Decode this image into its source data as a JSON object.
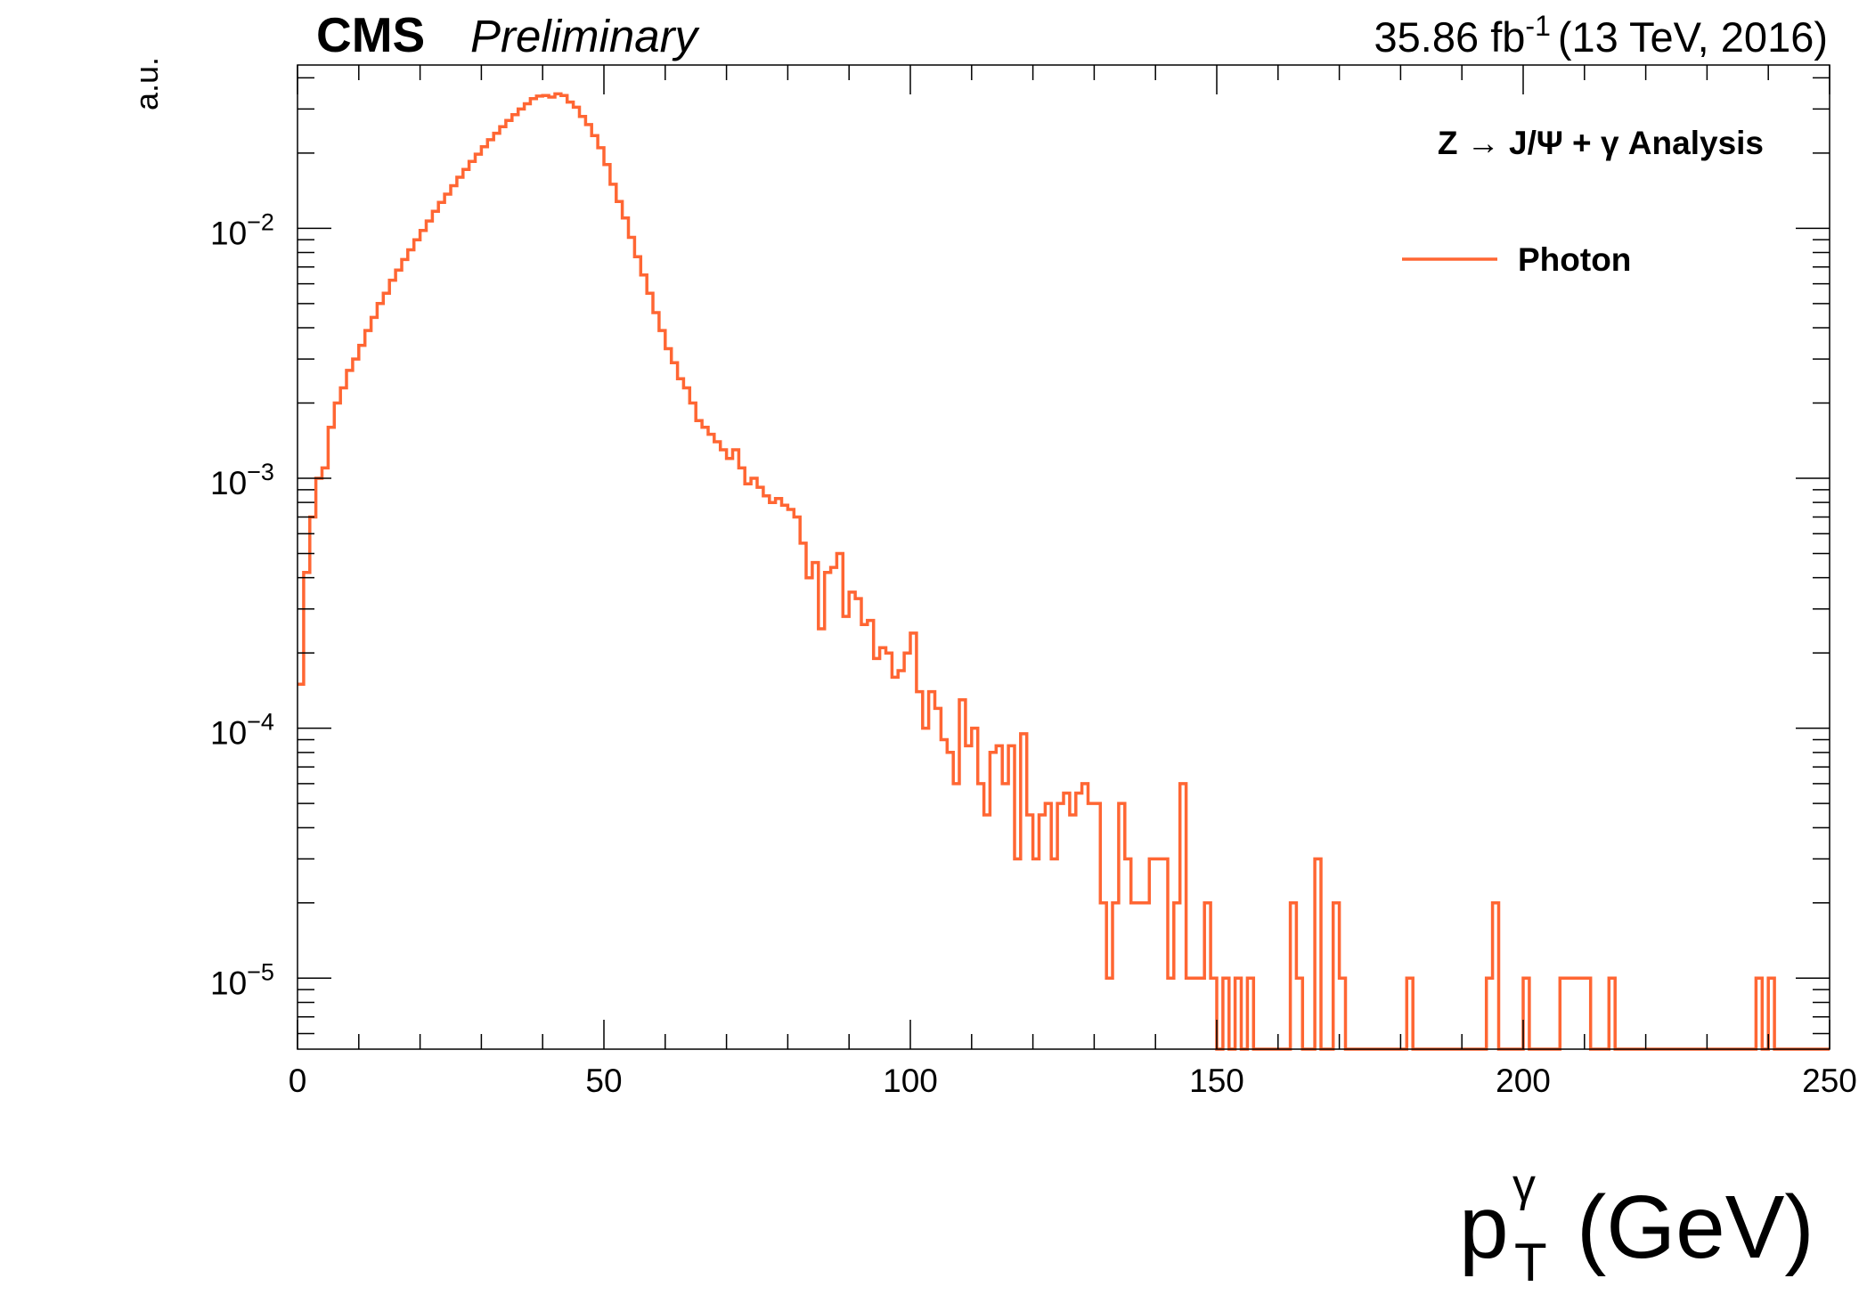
{
  "header": {
    "experiment": "CMS",
    "status": "Preliminary",
    "lumi_value": "35.86 fb",
    "lumi_exp": "-1",
    "lumi_rest": "(13 TeV, 2016)"
  },
  "legend": {
    "analysis_title": "Z → J/Ψ + γ Analysis",
    "entry_label": "Photon"
  },
  "colors": {
    "series": "#ff6633",
    "axis": "#000000"
  },
  "chart_data": {
    "type": "histogram",
    "xlabel_main": "p",
    "xlabel_sup": "γ",
    "xlabel_sub": "T",
    "xlabel_unit": "(GeV)",
    "ylabel": "a.u.",
    "xlim": [
      0,
      250
    ],
    "ylim": [
      5.2e-06,
      0.045
    ],
    "yscale": "log",
    "x_ticks": [
      0,
      50,
      100,
      150,
      200,
      250
    ],
    "y_ticks": [
      {
        "mant": "10",
        "exp": "−5",
        "value": 1e-05
      },
      {
        "mant": "10",
        "exp": "−4",
        "value": 0.0001
      },
      {
        "mant": "10",
        "exp": "−3",
        "value": 0.001
      },
      {
        "mant": "10",
        "exp": "−2",
        "value": 0.01
      }
    ],
    "legend_position": "top-right",
    "grid": false,
    "bin_width": 1,
    "series": [
      {
        "name": "Photon",
        "bin_start": 0,
        "values": [
          0.00015,
          0.00042,
          0.0007,
          0.001,
          0.0011,
          0.0016,
          0.002,
          0.0023,
          0.0027,
          0.003,
          0.0034,
          0.0039,
          0.0044,
          0.005,
          0.0055,
          0.0062,
          0.0068,
          0.0075,
          0.0082,
          0.009,
          0.0098,
          0.0107,
          0.0117,
          0.0127,
          0.0137,
          0.0148,
          0.016,
          0.0172,
          0.0185,
          0.0198,
          0.0212,
          0.0226,
          0.024,
          0.0255,
          0.027,
          0.0285,
          0.03,
          0.0315,
          0.033,
          0.0338,
          0.034,
          0.0335,
          0.0345,
          0.034,
          0.032,
          0.0305,
          0.028,
          0.026,
          0.0235,
          0.021,
          0.018,
          0.015,
          0.0128,
          0.011,
          0.0092,
          0.0077,
          0.0065,
          0.0055,
          0.0046,
          0.0039,
          0.0033,
          0.0029,
          0.0025,
          0.0023,
          0.002,
          0.0017,
          0.0016,
          0.0015,
          0.0014,
          0.0013,
          0.0012,
          0.0013,
          0.0011,
          0.00095,
          0.001,
          0.00092,
          0.00085,
          0.0008,
          0.00083,
          0.00078,
          0.00075,
          0.0007,
          0.00055,
          0.0004,
          0.00046,
          0.00025,
          0.00042,
          0.00044,
          0.0005,
          0.00028,
          0.00035,
          0.00033,
          0.00026,
          0.00027,
          0.00019,
          0.00021,
          0.0002,
          0.00016,
          0.00017,
          0.0002,
          0.00024,
          0.00014,
          0.0001,
          0.00014,
          0.00012,
          9e-05,
          8e-05,
          6e-05,
          0.00013,
          8.5e-05,
          0.0001,
          6e-05,
          4.5e-05,
          8e-05,
          8.5e-05,
          6e-05,
          8.5e-05,
          3e-05,
          9.5e-05,
          4.5e-05,
          3e-05,
          4.5e-05,
          5e-05,
          3e-05,
          5e-05,
          5.5e-05,
          4.5e-05,
          5.5e-05,
          6e-05,
          5e-05,
          5e-05,
          2e-05,
          1e-05,
          2e-05,
          5e-05,
          3e-05,
          2e-05,
          2e-05,
          2e-05,
          3e-05,
          3e-05,
          3e-05,
          1e-05,
          2e-05,
          6e-05,
          1e-05,
          1e-05,
          1e-05,
          2e-05,
          1e-05,
          0,
          1e-05,
          0,
          1e-05,
          0,
          1e-05,
          0,
          0,
          0,
          0,
          0,
          0,
          2e-05,
          1e-05,
          0,
          0,
          3e-05,
          0,
          0,
          2e-05,
          1e-05,
          0,
          0,
          0,
          0,
          0,
          0,
          0,
          0,
          0,
          0,
          1e-05,
          0,
          0,
          0,
          0,
          0,
          0,
          0,
          0,
          0,
          0,
          0,
          0,
          1e-05,
          2e-05,
          0,
          0,
          0,
          0,
          1e-05,
          0,
          0,
          0,
          0,
          0,
          1e-05,
          1e-05,
          1e-05,
          1e-05,
          1e-05,
          0,
          0,
          0,
          1e-05,
          0,
          0,
          0,
          0,
          0,
          0,
          0,
          0,
          0,
          0,
          0,
          0,
          0,
          0,
          0,
          0,
          0,
          0,
          0,
          0,
          0,
          0,
          0,
          1e-05,
          0,
          1e-05,
          0,
          0,
          0,
          0,
          0,
          0,
          0,
          0,
          0
        ]
      }
    ]
  }
}
